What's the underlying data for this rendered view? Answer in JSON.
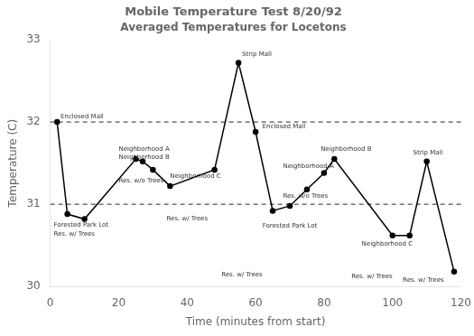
{
  "chart_data": {
    "type": "line",
    "title": "Mobile Temperature Test 8/20/92",
    "subtitle": "Averaged Temperatures for Locetons",
    "xlabel": "Time (minutes from start)",
    "ylabel": "Temperature (C)",
    "xlim": [
      0,
      120
    ],
    "ylim": [
      30,
      33
    ],
    "xticks": [
      0,
      20,
      40,
      60,
      80,
      100,
      120
    ],
    "yticks": [
      30,
      31,
      32,
      33
    ],
    "hlines": [
      31,
      32
    ],
    "x": [
      2,
      5,
      10,
      25,
      27,
      30,
      35,
      48,
      55,
      60,
      65,
      70,
      75,
      80,
      83,
      100,
      105,
      110,
      118
    ],
    "values": [
      32.0,
      30.88,
      30.82,
      31.55,
      31.52,
      31.42,
      31.22,
      31.42,
      32.72,
      31.88,
      30.92,
      30.98,
      31.18,
      31.38,
      31.55,
      30.62,
      30.62,
      31.52,
      30.18
    ],
    "color": "#000000",
    "marker": "circle",
    "grid": false,
    "annotations": [
      {
        "text": "Enclosed Mall",
        "x": 3,
        "y": 32.06
      },
      {
        "text": "Res. w/ Trees",
        "x": 1,
        "y": 30.64
      },
      {
        "text": "Forested Park Lot",
        "x": 1,
        "y": 30.75
      },
      {
        "text": "Neighborhood A",
        "x": 20,
        "y": 31.67
      },
      {
        "text": "Neighborhood B",
        "x": 20,
        "y": 31.57
      },
      {
        "text": "Res. w/o Trees",
        "x": 20,
        "y": 31.28
      },
      {
        "text": "Neighborhood C",
        "x": 35,
        "y": 31.34
      },
      {
        "text": "Res. w/ Trees",
        "x": 34,
        "y": 30.82
      },
      {
        "text": "Strip Mall",
        "x": 56,
        "y": 32.82
      },
      {
        "text": "Enclosed Mall",
        "x": 62,
        "y": 31.94
      },
      {
        "text": "Forested Park Lot",
        "x": 62,
        "y": 30.74
      },
      {
        "text": "Res. w/ Trees",
        "x": 50,
        "y": 30.14
      },
      {
        "text": "Res. w/o Trees",
        "x": 68,
        "y": 31.1
      },
      {
        "text": "Neighborhood A",
        "x": 68,
        "y": 31.46
      },
      {
        "text": "Neighborhood B",
        "x": 79,
        "y": 31.67
      },
      {
        "text": "Neighborhood C",
        "x": 91,
        "y": 30.52
      },
      {
        "text": "Res. w/ Trees",
        "x": 88,
        "y": 30.12
      },
      {
        "text": "Strip Mall",
        "x": 106,
        "y": 31.62
      },
      {
        "text": "Res. w/ Trees",
        "x": 103,
        "y": 30.08
      }
    ]
  }
}
